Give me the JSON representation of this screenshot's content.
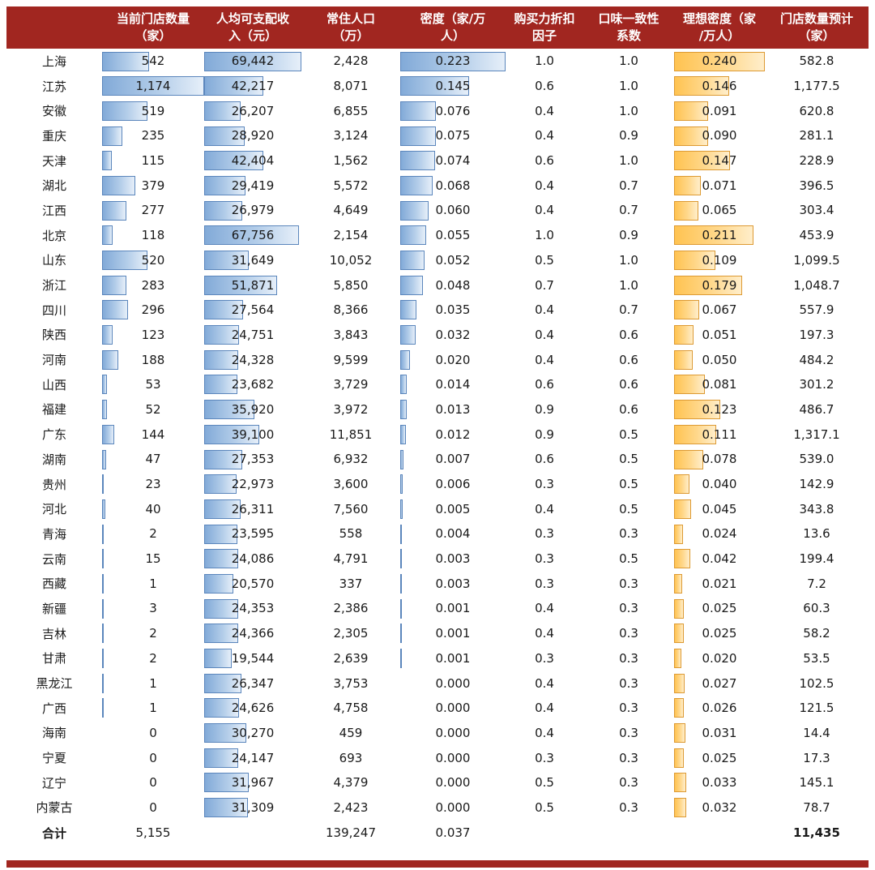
{
  "colors": {
    "header_bg": "#A12620",
    "blue_border": "#5B86BC",
    "blue_start": "#82AAD8",
    "blue_mid": "#B3CDE9",
    "blue_end": "#E6EFF9",
    "orange_border": "#DD9A33",
    "orange_start": "#FFC351",
    "orange_mid": "#FFD88C",
    "orange_end": "#FFEECB"
  },
  "chart_data": {
    "type": "table",
    "title": "",
    "columns": [
      {
        "key": "province",
        "line1": "",
        "line2": "",
        "bar": null,
        "width": 118
      },
      {
        "key": "stores",
        "line1": "当前门店数量",
        "line2": "（家）",
        "bar": "blue",
        "width": 126
      },
      {
        "key": "income",
        "line1": "人均可支配收",
        "line2": "入（元）",
        "bar": "blue",
        "width": 120
      },
      {
        "key": "population",
        "line1": "常住人口",
        "line2": "（万）",
        "bar": null,
        "width": 122
      },
      {
        "key": "density",
        "line1": "密度（家/万",
        "line2": "人）",
        "bar": "blue",
        "width": 130
      },
      {
        "key": "power",
        "line1": "购买力折扣",
        "line2": "因子",
        "bar": null,
        "width": 96
      },
      {
        "key": "taste",
        "line1": "口味一致性",
        "line2": "系数",
        "bar": null,
        "width": 112
      },
      {
        "key": "ideal",
        "line1": "理想密度（家",
        "line2": "/万人）",
        "bar": "orange",
        "width": 112
      },
      {
        "key": "forecast",
        "line1": "门店数量预计",
        "line2": "（家）",
        "bar": null,
        "width": 128
      }
    ],
    "rows": [
      [
        "上海",
        "542",
        "69,442",
        "2,428",
        "0.223",
        "1.0",
        "1.0",
        "0.240",
        "582.8"
      ],
      [
        "江苏",
        "1,174",
        "42,217",
        "8,071",
        "0.145",
        "0.6",
        "1.0",
        "0.146",
        "1,177.5"
      ],
      [
        "安徽",
        "519",
        "26,207",
        "6,855",
        "0.076",
        "0.4",
        "1.0",
        "0.091",
        "620.8"
      ],
      [
        "重庆",
        "235",
        "28,920",
        "3,124",
        "0.075",
        "0.4",
        "0.9",
        "0.090",
        "281.1"
      ],
      [
        "天津",
        "115",
        "42,404",
        "1,562",
        "0.074",
        "0.6",
        "1.0",
        "0.147",
        "228.9"
      ],
      [
        "湖北",
        "379",
        "29,419",
        "5,572",
        "0.068",
        "0.4",
        "0.7",
        "0.071",
        "396.5"
      ],
      [
        "江西",
        "277",
        "26,979",
        "4,649",
        "0.060",
        "0.4",
        "0.7",
        "0.065",
        "303.4"
      ],
      [
        "北京",
        "118",
        "67,756",
        "2,154",
        "0.055",
        "1.0",
        "0.9",
        "0.211",
        "453.9"
      ],
      [
        "山东",
        "520",
        "31,649",
        "10,052",
        "0.052",
        "0.5",
        "1.0",
        "0.109",
        "1,099.5"
      ],
      [
        "浙江",
        "283",
        "51,871",
        "5,850",
        "0.048",
        "0.7",
        "1.0",
        "0.179",
        "1,048.7"
      ],
      [
        "四川",
        "296",
        "27,564",
        "8,366",
        "0.035",
        "0.4",
        "0.7",
        "0.067",
        "557.9"
      ],
      [
        "陕西",
        "123",
        "24,751",
        "3,843",
        "0.032",
        "0.4",
        "0.6",
        "0.051",
        "197.3"
      ],
      [
        "河南",
        "188",
        "24,328",
        "9,599",
        "0.020",
        "0.4",
        "0.6",
        "0.050",
        "484.2"
      ],
      [
        "山西",
        "53",
        "23,682",
        "3,729",
        "0.014",
        "0.6",
        "0.6",
        "0.081",
        "301.2"
      ],
      [
        "福建",
        "52",
        "35,920",
        "3,972",
        "0.013",
        "0.9",
        "0.6",
        "0.123",
        "486.7"
      ],
      [
        "广东",
        "144",
        "39,100",
        "11,851",
        "0.012",
        "0.9",
        "0.5",
        "0.111",
        "1,317.1"
      ],
      [
        "湖南",
        "47",
        "27,353",
        "6,932",
        "0.007",
        "0.6",
        "0.5",
        "0.078",
        "539.0"
      ],
      [
        "贵州",
        "23",
        "22,973",
        "3,600",
        "0.006",
        "0.3",
        "0.5",
        "0.040",
        "142.9"
      ],
      [
        "河北",
        "40",
        "26,311",
        "7,560",
        "0.005",
        "0.4",
        "0.5",
        "0.045",
        "343.8"
      ],
      [
        "青海",
        "2",
        "23,595",
        "558",
        "0.004",
        "0.3",
        "0.3",
        "0.024",
        "13.6"
      ],
      [
        "云南",
        "15",
        "24,086",
        "4,791",
        "0.003",
        "0.3",
        "0.5",
        "0.042",
        "199.4"
      ],
      [
        "西藏",
        "1",
        "20,570",
        "337",
        "0.003",
        "0.3",
        "0.3",
        "0.021",
        "7.2"
      ],
      [
        "新疆",
        "3",
        "24,353",
        "2,386",
        "0.001",
        "0.4",
        "0.3",
        "0.025",
        "60.3"
      ],
      [
        "吉林",
        "2",
        "24,366",
        "2,305",
        "0.001",
        "0.4",
        "0.3",
        "0.025",
        "58.2"
      ],
      [
        "甘肃",
        "2",
        "19,544",
        "2,639",
        "0.001",
        "0.3",
        "0.3",
        "0.020",
        "53.5"
      ],
      [
        "黑龙江",
        "1",
        "26,347",
        "3,753",
        "0.000",
        "0.4",
        "0.3",
        "0.027",
        "102.5"
      ],
      [
        "广西",
        "1",
        "24,626",
        "4,758",
        "0.000",
        "0.4",
        "0.3",
        "0.026",
        "121.5"
      ],
      [
        "海南",
        "0",
        "30,270",
        "459",
        "0.000",
        "0.4",
        "0.3",
        "0.031",
        "14.4"
      ],
      [
        "宁夏",
        "0",
        "24,147",
        "693",
        "0.000",
        "0.3",
        "0.3",
        "0.025",
        "17.3"
      ],
      [
        "辽宁",
        "0",
        "31,967",
        "4,379",
        "0.000",
        "0.5",
        "0.3",
        "0.033",
        "145.1"
      ],
      [
        "内蒙古",
        "0",
        "31,309",
        "2,423",
        "0.000",
        "0.5",
        "0.3",
        "0.032",
        "78.7"
      ]
    ],
    "total_row": [
      "合计",
      "5,155",
      "",
      "139,247",
      "0.037",
      "",
      "",
      "",
      "11,435"
    ]
  }
}
